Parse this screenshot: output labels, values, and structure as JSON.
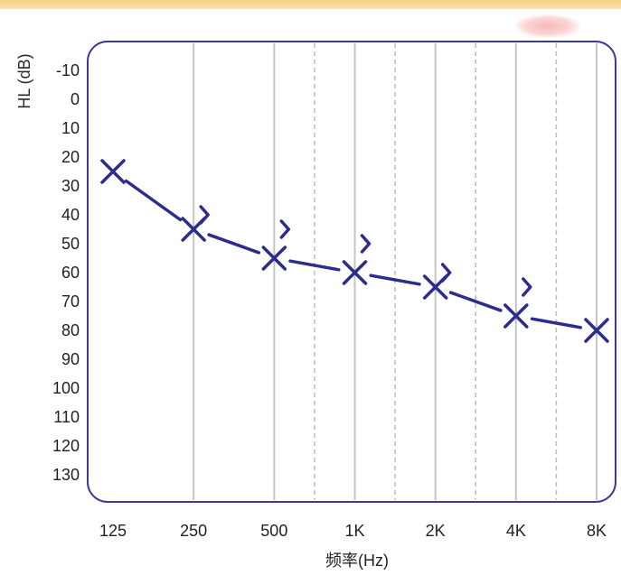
{
  "chart_data": {
    "type": "line",
    "ylabel": "HL (dB)",
    "xlabel": "频率(Hz)",
    "categories": [
      "125",
      "250",
      "500",
      "1K",
      "2K",
      "4K",
      "8K"
    ],
    "yticks": [
      "-10",
      "0",
      "10",
      "20",
      "30",
      "40",
      "50",
      "60",
      "70",
      "80",
      "90",
      "100",
      "110",
      "120",
      "130"
    ],
    "ylim": [
      -10,
      130
    ],
    "y_inverted": true,
    "series": [
      {
        "marker": "x",
        "color": "#2c2c8c",
        "values": [
          25,
          45,
          55,
          60,
          65,
          75,
          80
        ]
      },
      {
        "marker": "angle-bracket",
        "color": "#2c2c8c",
        "x": [
          "250",
          "500",
          "1K",
          "2K",
          "4K"
        ],
        "values": [
          40,
          45,
          50,
          60,
          65
        ]
      }
    ],
    "grid": "vertical",
    "legend": "none"
  },
  "colors": {
    "frame": "#3a3a9a",
    "line": "#2c2c8c",
    "grid_major": "#c4c4c4",
    "grid_minor": "#bcbcbc"
  }
}
